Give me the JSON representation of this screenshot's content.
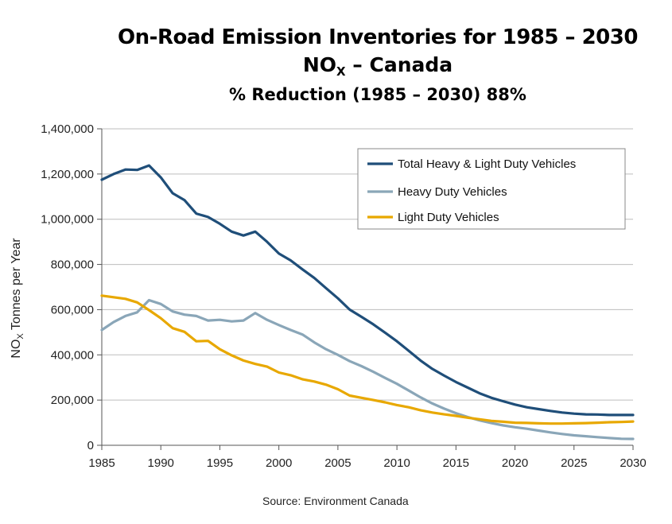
{
  "chart_data": {
    "type": "line",
    "title": "On-Road Emission Inventories for 1985 – 2030",
    "subtitle_main": "NO",
    "subtitle_sub": "X",
    "subtitle_rest": " – Canada",
    "reduction_note": "% Reduction (1985 – 2030) 88%",
    "ylabel_main": "NO",
    "ylabel_sub": "X",
    "ylabel_rest": " Tonnes per Year",
    "xlabel": "",
    "xlim": [
      1985,
      2030
    ],
    "ylim": [
      0,
      1400000
    ],
    "x_ticks": [
      "1985",
      "1990",
      "1995",
      "2000",
      "2005",
      "2010",
      "2015",
      "2020",
      "2025",
      "2030"
    ],
    "y_ticks": [
      "0",
      "200,000",
      "400,000",
      "600,000",
      "800,000",
      "1,000,000",
      "1,200,000",
      "1,400,000"
    ],
    "grid": "horizontal",
    "legend_position": "top-right",
    "source": "Source: Environment Canada",
    "series": [
      {
        "name": "Total Heavy & Light Duty Vehicles",
        "color": "#1f4e79",
        "x": [
          1985,
          1986,
          1987,
          1988,
          1989,
          1990,
          1991,
          1992,
          1993,
          1994,
          1995,
          1996,
          1997,
          1998,
          1999,
          2000,
          2001,
          2002,
          2003,
          2004,
          2005,
          2006,
          2007,
          2008,
          2009,
          2010,
          2011,
          2012,
          2013,
          2014,
          2015,
          2016,
          2017,
          2018,
          2019,
          2020,
          2021,
          2022,
          2023,
          2024,
          2025,
          2026,
          2027,
          2028,
          2029,
          2030
        ],
        "values": [
          1175000,
          1200000,
          1220000,
          1218000,
          1238000,
          1185000,
          1115000,
          1085000,
          1025000,
          1010000,
          980000,
          945000,
          928000,
          945000,
          900000,
          848000,
          818000,
          778000,
          740000,
          695000,
          650000,
          600000,
          568000,
          535000,
          498000,
          460000,
          418000,
          375000,
          338000,
          308000,
          280000,
          255000,
          230000,
          210000,
          195000,
          180000,
          168000,
          160000,
          152000,
          145000,
          140000,
          137000,
          136000,
          134000,
          134000,
          134000
        ]
      },
      {
        "name": "Heavy Duty Vehicles",
        "color": "#8aa6b8",
        "x": [
          1985,
          1986,
          1987,
          1988,
          1989,
          1990,
          1991,
          1992,
          1993,
          1994,
          1995,
          1996,
          1997,
          1998,
          1999,
          2000,
          2001,
          2002,
          2003,
          2004,
          2005,
          2006,
          2007,
          2008,
          2009,
          2010,
          2011,
          2012,
          2013,
          2014,
          2015,
          2016,
          2017,
          2018,
          2019,
          2020,
          2021,
          2022,
          2023,
          2024,
          2025,
          2026,
          2027,
          2028,
          2029,
          2030
        ],
        "values": [
          510000,
          545000,
          572000,
          588000,
          642000,
          625000,
          592000,
          578000,
          572000,
          552000,
          555000,
          548000,
          552000,
          585000,
          555000,
          532000,
          510000,
          490000,
          455000,
          425000,
          400000,
          372000,
          350000,
          325000,
          298000,
          272000,
          242000,
          212000,
          185000,
          162000,
          142000,
          125000,
          110000,
          98000,
          88000,
          80000,
          73000,
          65000,
          57000,
          50000,
          44000,
          40000,
          36000,
          32000,
          29000,
          28000
        ]
      },
      {
        "name": "Light Duty Vehicles",
        "color": "#e8a800",
        "x": [
          1985,
          1986,
          1987,
          1988,
          1989,
          1990,
          1991,
          1992,
          1993,
          1994,
          1995,
          1996,
          1997,
          1998,
          1999,
          2000,
          2001,
          2002,
          2003,
          2004,
          2005,
          2006,
          2007,
          2008,
          2009,
          2010,
          2011,
          2012,
          2013,
          2014,
          2015,
          2016,
          2017,
          2018,
          2019,
          2020,
          2021,
          2022,
          2023,
          2024,
          2025,
          2026,
          2027,
          2028,
          2029,
          2030
        ],
        "values": [
          662000,
          655000,
          648000,
          632000,
          598000,
          562000,
          518000,
          502000,
          460000,
          462000,
          425000,
          398000,
          375000,
          360000,
          348000,
          322000,
          310000,
          292000,
          282000,
          268000,
          248000,
          220000,
          210000,
          200000,
          190000,
          178000,
          168000,
          155000,
          145000,
          137000,
          130000,
          122000,
          115000,
          108000,
          104000,
          100000,
          99000,
          97000,
          96000,
          96000,
          97000,
          98000,
          100000,
          102000,
          103000,
          105000
        ]
      }
    ]
  }
}
